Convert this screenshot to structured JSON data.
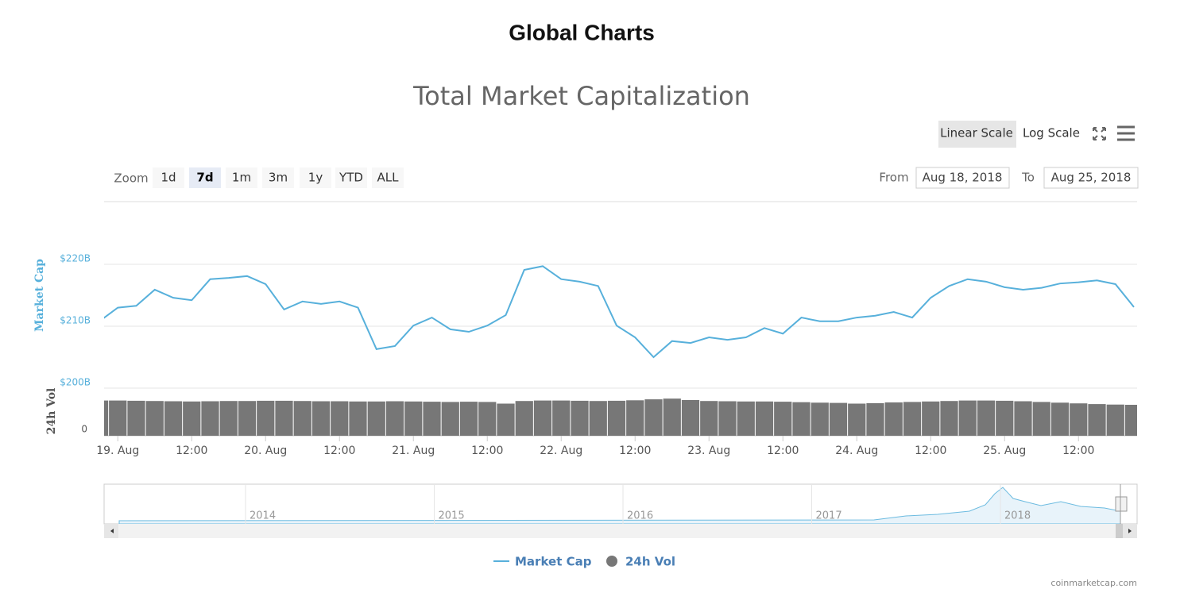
{
  "header": {
    "title": "Global Charts"
  },
  "controls": {
    "scale_buttons": [
      "Linear Scale",
      "Log Scale"
    ],
    "zoom_label": "Zoom",
    "zoom_buttons": [
      "1d",
      "7d",
      "1m",
      "3m",
      "1y",
      "YTD",
      "ALL"
    ],
    "zoom_selected": 1,
    "from_label": "From",
    "from": "Aug 18, 2018",
    "to_label": "To",
    "to": "Aug 25, 2018"
  },
  "chart_data": {
    "type": "line",
    "title": "Total Market Capitalization",
    "ylabel": "Market Cap",
    "y2label": "24h Vol",
    "x": [
      "2018-08-18T21:00",
      "2018-08-19T00:00",
      "2018-08-19T03:00",
      "2018-08-19T06:00",
      "2018-08-19T09:00",
      "2018-08-19T12:00",
      "2018-08-19T15:00",
      "2018-08-19T18:00",
      "2018-08-19T21:00",
      "2018-08-20T00:00",
      "2018-08-20T03:00",
      "2018-08-20T06:00",
      "2018-08-20T09:00",
      "2018-08-20T12:00",
      "2018-08-20T15:00",
      "2018-08-20T18:00",
      "2018-08-20T21:00",
      "2018-08-21T00:00",
      "2018-08-21T03:00",
      "2018-08-21T06:00",
      "2018-08-21T09:00",
      "2018-08-21T12:00",
      "2018-08-21T15:00",
      "2018-08-21T18:00",
      "2018-08-21T21:00",
      "2018-08-22T00:00",
      "2018-08-22T03:00",
      "2018-08-22T06:00",
      "2018-08-22T09:00",
      "2018-08-22T12:00",
      "2018-08-22T15:00",
      "2018-08-22T18:00",
      "2018-08-22T21:00",
      "2018-08-23T00:00",
      "2018-08-23T03:00",
      "2018-08-23T06:00",
      "2018-08-23T09:00",
      "2018-08-23T12:00",
      "2018-08-23T15:00",
      "2018-08-23T18:00",
      "2018-08-23T21:00",
      "2018-08-24T00:00",
      "2018-08-24T03:00",
      "2018-08-24T06:00",
      "2018-08-24T09:00",
      "2018-08-24T12:00",
      "2018-08-24T15:00",
      "2018-08-24T18:00",
      "2018-08-24T21:00",
      "2018-08-25T00:00",
      "2018-08-25T03:00",
      "2018-08-25T06:00",
      "2018-08-25T09:00",
      "2018-08-25T12:00",
      "2018-08-25T15:00",
      "2018-08-25T18:00",
      "2018-08-25T21:00"
    ],
    "series": [
      {
        "name": "Market Cap",
        "type": "line",
        "color": "#57b0db",
        "values": [
          210.8,
          213,
          213.3,
          215.9,
          214.6,
          214.2,
          217.6,
          217.8,
          218.1,
          216.8,
          212.7,
          214,
          213.6,
          214,
          213,
          206.3,
          206.8,
          210.1,
          211.4,
          209.5,
          209.1,
          210.1,
          211.8,
          219.1,
          219.7,
          217.6,
          217.2,
          216.5,
          210.1,
          208.2,
          205,
          207.6,
          207.3,
          208.2,
          207.8,
          208.2,
          209.7,
          208.8,
          211.4,
          210.8,
          210.8,
          211.4,
          211.7,
          212.3,
          211.4,
          214.6,
          216.5,
          217.6,
          217.2,
          216.3,
          215.9,
          216.2,
          216.9,
          217.1,
          217.4,
          216.8,
          213.1
        ]
      },
      {
        "name": "24h Vol",
        "type": "bar",
        "axis": "y2",
        "color": "#777777",
        "values": [
          14.8,
          14.8,
          14.7,
          14.6,
          14.5,
          14.4,
          14.5,
          14.6,
          14.6,
          14.7,
          14.7,
          14.6,
          14.5,
          14.5,
          14.4,
          14.4,
          14.5,
          14.4,
          14.3,
          14.2,
          14.3,
          14.2,
          13.5,
          14.6,
          14.8,
          14.8,
          14.7,
          14.6,
          14.7,
          14.9,
          15.3,
          15.6,
          15.0,
          14.6,
          14.5,
          14.4,
          14.4,
          14.3,
          14.1,
          13.9,
          13.8,
          13.5,
          13.7,
          14.0,
          14.2,
          14.4,
          14.6,
          14.8,
          14.8,
          14.7,
          14.5,
          14.2,
          13.9,
          13.6,
          13.3,
          13.1,
          13.0
        ]
      }
    ],
    "xlim": [
      "2018-08-18T21:00",
      "2018-08-25T21:00"
    ],
    "xticks": [
      {
        "value": "2018-08-19T00:00",
        "label": "19. Aug"
      },
      {
        "value": "2018-08-19T12:00",
        "label": "12:00"
      },
      {
        "value": "2018-08-20T00:00",
        "label": "20. Aug"
      },
      {
        "value": "2018-08-20T12:00",
        "label": "12:00"
      },
      {
        "value": "2018-08-21T00:00",
        "label": "21. Aug"
      },
      {
        "value": "2018-08-21T12:00",
        "label": "12:00"
      },
      {
        "value": "2018-08-22T00:00",
        "label": "22. Aug"
      },
      {
        "value": "2018-08-22T12:00",
        "label": "12:00"
      },
      {
        "value": "2018-08-23T00:00",
        "label": "23. Aug"
      },
      {
        "value": "2018-08-23T12:00",
        "label": "12:00"
      },
      {
        "value": "2018-08-24T00:00",
        "label": "24. Aug"
      },
      {
        "value": "2018-08-24T12:00",
        "label": "12:00"
      },
      {
        "value": "2018-08-25T00:00",
        "label": "25. Aug"
      },
      {
        "value": "2018-08-25T12:00",
        "label": "12:00"
      }
    ],
    "ylim": [
      200,
      230
    ],
    "yticks": [
      {
        "value": 200,
        "label": "$200B"
      },
      {
        "value": 210,
        "label": "$210B"
      },
      {
        "value": 220,
        "label": "$220B"
      }
    ],
    "y2lim": [
      0,
      20
    ],
    "y2ticks": [
      0
    ],
    "grid": true
  },
  "navigator": {
    "labels": [
      "2014",
      "2015",
      "2016",
      "2017",
      "2018"
    ]
  },
  "credit": "coinmarketcap.com"
}
